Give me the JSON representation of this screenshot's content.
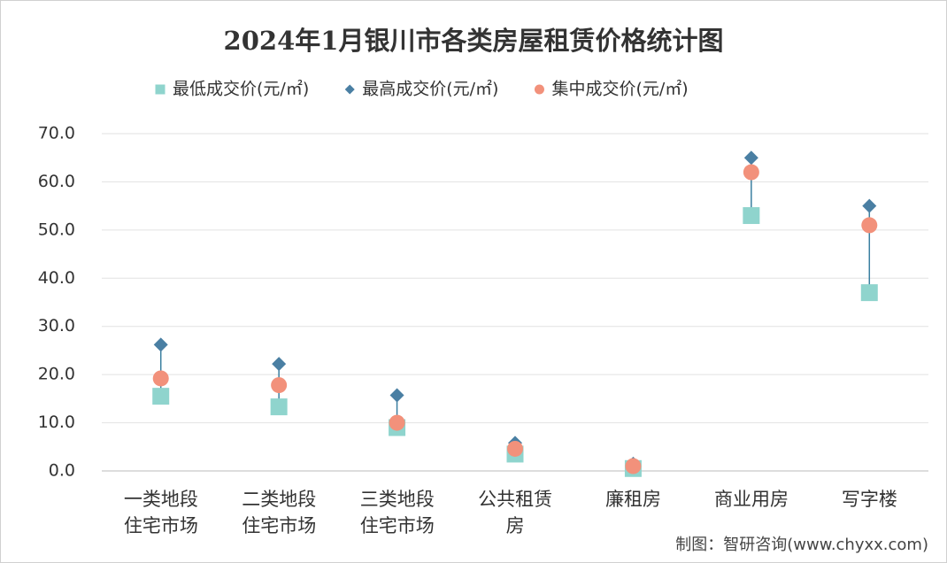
{
  "chart_data": {
    "type": "dot-range",
    "title": "2024年1月银川市各类房屋租赁价格统计图",
    "categories": [
      "一类地段住宅市场",
      "二类地段住宅市场",
      "三类地段住宅市场",
      "公共租赁房",
      "廉租房",
      "商业用房",
      "写字楼"
    ],
    "series": [
      {
        "name": "最低成交价(元/㎡)",
        "color": "#8fd4cd",
        "marker": "square",
        "values": [
          15.5,
          13.3,
          9,
          3.5,
          0.5,
          53,
          37
        ]
      },
      {
        "name": "最高成交价(元/㎡)",
        "color": "#4a7fa3",
        "marker": "diamond",
        "values": [
          26.2,
          22.2,
          15.7,
          5.8,
          1.5,
          65,
          55
        ]
      },
      {
        "name": "集中成交价(元/㎡)",
        "color": "#f2917b",
        "marker": "circle",
        "values": [
          19.2,
          17.8,
          10,
          4.6,
          1,
          62,
          51
        ]
      }
    ],
    "range_line_color": "#3a7fa0",
    "ylim": [
      0,
      70
    ],
    "yticks": [
      {
        "value": 0,
        "label": "0.0"
      },
      {
        "value": 10,
        "label": "10.0"
      },
      {
        "value": 20,
        "label": "20.0"
      },
      {
        "value": 30,
        "label": "30.0"
      },
      {
        "value": 40,
        "label": "40.0"
      },
      {
        "value": 50,
        "label": "50.0"
      },
      {
        "value": 60,
        "label": "60.0"
      },
      {
        "value": 70,
        "label": "70.0"
      }
    ],
    "grid": true,
    "source": "制图：智研咨询(www.chyxx.com)"
  }
}
